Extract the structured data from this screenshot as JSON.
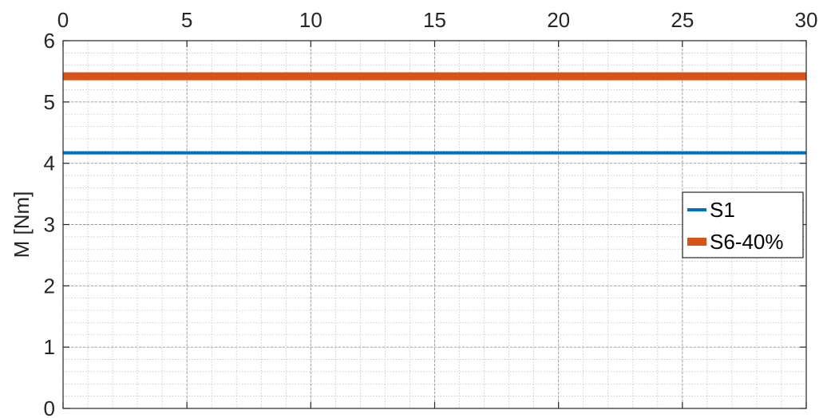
{
  "chart_data": {
    "type": "line",
    "title": "",
    "xlabel": "",
    "ylabel": "M [Nm]",
    "xlim": [
      0,
      30
    ],
    "ylim": [
      0,
      6
    ],
    "x_axis_position": "top",
    "x_ticks": [
      0,
      5,
      10,
      15,
      20,
      25,
      30
    ],
    "x_tick_labels": [
      "0",
      "5",
      "10",
      "15",
      "20",
      "25",
      "30"
    ],
    "y_ticks": [
      0,
      1,
      2,
      3,
      4,
      5,
      6
    ],
    "y_tick_labels": [
      "0",
      "1",
      "2",
      "3",
      "4",
      "5",
      "6"
    ],
    "grid": true,
    "minor_grid": true,
    "legend_position": "right",
    "series": [
      {
        "name": "S1",
        "color": "#0072BD",
        "line_weight": "thin",
        "x": [
          0,
          30
        ],
        "y": [
          4.17,
          4.17
        ]
      },
      {
        "name": "S6-40%",
        "color": "#D95319",
        "line_weight": "thick",
        "x": [
          0,
          30
        ],
        "y": [
          5.42,
          5.42
        ]
      }
    ]
  }
}
